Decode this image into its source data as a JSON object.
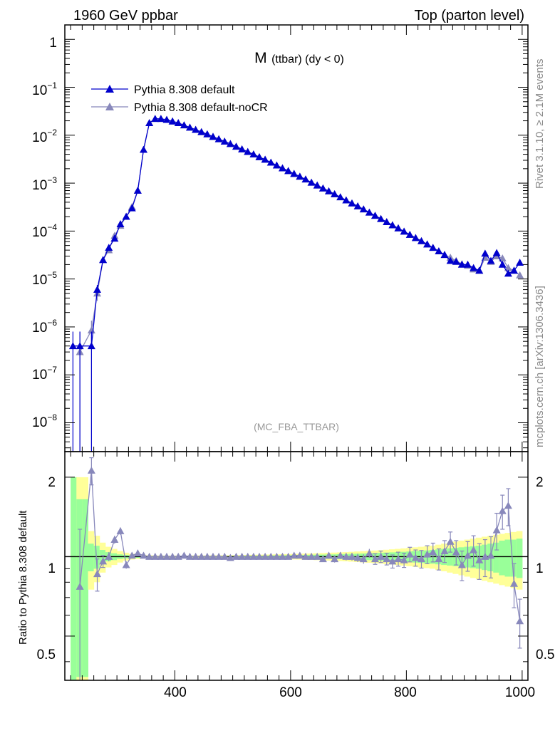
{
  "header": {
    "left": "1960 GeV ppbar",
    "right": "Top (parton level)"
  },
  "side_text": {
    "top": "Rivet 3.1.10, ≥ 2.1M events",
    "bottom": "mcplots.cern.ch [arXiv:1306.3436]"
  },
  "colors": {
    "default": "#0000cc",
    "noCR": "#8888bb",
    "band_inner": "#99ff99",
    "band_outer": "#ffff99"
  },
  "chart_data": [
    {
      "type": "line",
      "title_main": "M",
      "title_sub": "(ttbar) (dy < 0)",
      "watermark": "(MC_FBA_TTBAR)",
      "xlim": [
        210,
        1010
      ],
      "ylim": [
        2.5e-09,
        2.0
      ],
      "yscale": "log",
      "ytick_labels": [
        {
          "base": "1",
          "exp": ""
        },
        {
          "base": "10",
          "exp": "−1"
        },
        {
          "base": "10",
          "exp": "−2"
        },
        {
          "base": "10",
          "exp": "−3"
        },
        {
          "base": "10",
          "exp": "−4"
        },
        {
          "base": "10",
          "exp": "−5"
        },
        {
          "base": "10",
          "exp": "−6"
        },
        {
          "base": "10",
          "exp": "−7"
        },
        {
          "base": "10",
          "exp": "−8"
        }
      ],
      "legend": {
        "placement": "top-left"
      },
      "series": [
        {
          "name": "Pythia 8.308 default",
          "marker": "filled-triangle",
          "x": [
            224,
            236,
            256,
            266,
            276,
            286,
            296,
            306,
            316,
            326,
            336,
            346,
            356,
            366,
            376,
            386,
            396,
            406,
            416,
            426,
            436,
            446,
            456,
            466,
            476,
            486,
            496,
            506,
            516,
            526,
            536,
            546,
            556,
            566,
            576,
            586,
            596,
            606,
            616,
            626,
            636,
            646,
            656,
            666,
            676,
            686,
            696,
            706,
            716,
            726,
            736,
            746,
            756,
            766,
            776,
            786,
            796,
            806,
            816,
            826,
            836,
            846,
            856,
            866,
            876,
            886,
            896,
            906,
            916,
            926,
            936,
            946,
            956,
            966,
            976,
            986,
            996
          ],
          "y": [
            4e-07,
            4e-07,
            4e-07,
            6e-06,
            2.5e-05,
            4.5e-05,
            7e-05,
            0.00014,
            0.0002,
            0.0003,
            0.0007,
            0.005,
            0.018,
            0.022,
            0.022,
            0.021,
            0.0195,
            0.018,
            0.0162,
            0.0145,
            0.013,
            0.0117,
            0.0105,
            0.0093,
            0.0083,
            0.0074,
            0.0066,
            0.0058,
            0.0051,
            0.0045,
            0.004,
            0.0035,
            0.0031,
            0.0027,
            0.00235,
            0.00205,
            0.0018,
            0.00157,
            0.00137,
            0.0012,
            0.00103,
            0.0009,
            0.00078,
            0.00068,
            0.00059,
            0.00051,
            0.00044,
            0.00038,
            0.00033,
            0.000285,
            0.000245,
            0.00021,
            0.00018,
            0.000155,
            0.000133,
            0.000115,
            9.8e-05,
            8.4e-05,
            7.2e-05,
            6.2e-05,
            5.3e-05,
            4.5e-05,
            3.8e-05,
            3.2e-05,
            2.4e-05,
            2.3e-05,
            2e-05,
            2e-05,
            1.7e-05,
            1.5e-05,
            3.4e-05,
            2.4e-05,
            3.5e-05,
            2e-05,
            1.3e-05,
            1.5e-05,
            2.2e-05
          ],
          "yerr": [
            4e-07,
            4e-07,
            4e-07,
            1.5e-06,
            0,
            0,
            0,
            0,
            0,
            0,
            0,
            0,
            0,
            0,
            0,
            0,
            0,
            0,
            0,
            0,
            0,
            0,
            0,
            0,
            0,
            0,
            0,
            0,
            0,
            0,
            0,
            0,
            0,
            0,
            0,
            0,
            0,
            0,
            0,
            0,
            0,
            0,
            0,
            0,
            0,
            0,
            0,
            0,
            0,
            0,
            0,
            0,
            0,
            0,
            0,
            0,
            0,
            0,
            0,
            0,
            0,
            0,
            0,
            0,
            0,
            0,
            0,
            0,
            0,
            0,
            0,
            0,
            0,
            0,
            0,
            0,
            0
          ]
        },
        {
          "name": "Pythia 8.308 default-noCR",
          "marker": "filled-triangle",
          "x": [
            236,
            256,
            266,
            276,
            286,
            296,
            306,
            316,
            326,
            336,
            346,
            356,
            366,
            376,
            386,
            396,
            406,
            416,
            426,
            436,
            446,
            456,
            466,
            476,
            486,
            496,
            506,
            516,
            526,
            536,
            546,
            556,
            566,
            576,
            586,
            596,
            606,
            616,
            626,
            636,
            646,
            656,
            666,
            676,
            686,
            696,
            706,
            716,
            726,
            736,
            746,
            756,
            766,
            776,
            786,
            796,
            806,
            816,
            826,
            836,
            846,
            856,
            866,
            876,
            886,
            896,
            906,
            916,
            926,
            936,
            946,
            956,
            966,
            976,
            986,
            996
          ],
          "y": [
            3e-07,
            8.5e-07,
            5e-06,
            2.5e-05,
            4e-05,
            8e-05,
            0.00013,
            0.0002,
            0.00032,
            0.0007,
            0.005,
            0.018,
            0.022,
            0.022,
            0.021,
            0.0195,
            0.018,
            0.0162,
            0.0145,
            0.013,
            0.0117,
            0.0105,
            0.0093,
            0.0083,
            0.0074,
            0.0066,
            0.0058,
            0.0051,
            0.0045,
            0.004,
            0.0035,
            0.0031,
            0.0027,
            0.00235,
            0.00205,
            0.0018,
            0.00157,
            0.00137,
            0.0012,
            0.00103,
            0.0009,
            0.00078,
            0.00068,
            0.00059,
            0.00051,
            0.00044,
            0.00038,
            0.00033,
            0.000285,
            0.000245,
            0.00021,
            0.00018,
            0.000155,
            0.000133,
            0.000115,
            9.8e-05,
            8.4e-05,
            7.2e-05,
            6.2e-05,
            5.3e-05,
            4.5e-05,
            3.8e-05,
            3.2e-05,
            2.8e-05,
            2.4e-05,
            2.05e-05,
            1.9e-05,
            1.6e-05,
            1.5e-05,
            2.8e-05,
            2.3e-05,
            3e-05,
            2.7e-05,
            1.7e-05,
            1.5e-05,
            1.2e-05
          ],
          "yerr": [
            5e-07,
            5e-07,
            1.5e-06,
            0,
            0,
            0,
            0,
            0,
            0,
            0,
            0,
            0,
            0,
            0,
            0,
            0,
            0,
            0,
            0,
            0,
            0,
            0,
            0,
            0,
            0,
            0,
            0,
            0,
            0,
            0,
            0,
            0,
            0,
            0,
            0,
            0,
            0,
            0,
            0,
            0,
            0,
            0,
            0,
            0,
            0,
            0,
            0,
            0,
            0,
            0,
            0,
            0,
            0,
            0,
            0,
            0,
            0,
            0,
            0,
            0,
            0,
            0,
            0,
            0,
            0,
            0,
            0,
            0,
            0,
            0,
            0,
            0,
            0,
            0,
            0,
            0
          ]
        }
      ]
    },
    {
      "type": "line",
      "ylabel": "Ratio to Pythia 8.308 default",
      "xlim": [
        210,
        1010
      ],
      "ylim": [
        0.34,
        2.5
      ],
      "yscale": "log",
      "xticks": [
        400,
        600,
        800,
        1000
      ],
      "xtick_labels": [
        "400",
        "600",
        "800",
        "1000"
      ],
      "yticks": [
        0.5,
        1,
        2
      ],
      "ytick_labels": [
        "0.5",
        "1",
        "2"
      ],
      "band": {
        "x_edges": [
          220,
          230,
          240,
          250,
          260,
          270,
          280,
          290,
          300,
          310,
          320,
          330,
          340,
          350,
          360,
          370,
          380,
          390,
          400,
          410,
          420,
          430,
          440,
          450,
          460,
          470,
          480,
          490,
          500,
          510,
          520,
          530,
          540,
          550,
          560,
          570,
          580,
          590,
          600,
          610,
          620,
          630,
          640,
          650,
          660,
          670,
          680,
          690,
          700,
          710,
          720,
          730,
          740,
          750,
          760,
          770,
          780,
          790,
          800,
          810,
          820,
          830,
          840,
          850,
          860,
          870,
          880,
          890,
          900,
          910,
          920,
          930,
          940,
          950,
          960,
          970,
          980,
          990,
          1000
        ],
        "inner_half": [
          1,
          0.65,
          0.65,
          0.12,
          0.1,
          0.06,
          0.04,
          0.03,
          0.02,
          0.015,
          0.012,
          0.01,
          0.008,
          0.006,
          0.005,
          0.004,
          0.004,
          0.004,
          0.004,
          0.004,
          0.004,
          0.004,
          0.004,
          0.005,
          0.005,
          0.005,
          0.006,
          0.006,
          0.007,
          0.007,
          0.008,
          0.008,
          0.009,
          0.009,
          0.01,
          0.011,
          0.011,
          0.012,
          0.013,
          0.014,
          0.015,
          0.016,
          0.017,
          0.018,
          0.019,
          0.02,
          0.022,
          0.023,
          0.025,
          0.026,
          0.028,
          0.03,
          0.032,
          0.034,
          0.036,
          0.038,
          0.04,
          0.043,
          0.046,
          0.05,
          0.053,
          0.056,
          0.06,
          0.065,
          0.07,
          0.075,
          0.08,
          0.085,
          0.09,
          0.095,
          0.1,
          0.11,
          0.12,
          0.13,
          0.15,
          0.16,
          0.16,
          0.17
        ],
        "outer_half": [
          1,
          1,
          1,
          0.25,
          0.2,
          0.13,
          0.09,
          0.07,
          0.05,
          0.035,
          0.025,
          0.02,
          0.016,
          0.012,
          0.01,
          0.009,
          0.009,
          0.009,
          0.009,
          0.009,
          0.009,
          0.01,
          0.01,
          0.01,
          0.011,
          0.011,
          0.012,
          0.012,
          0.013,
          0.014,
          0.015,
          0.016,
          0.017,
          0.018,
          0.019,
          0.02,
          0.021,
          0.022,
          0.024,
          0.025,
          0.027,
          0.028,
          0.03,
          0.032,
          0.034,
          0.036,
          0.038,
          0.04,
          0.043,
          0.046,
          0.049,
          0.052,
          0.055,
          0.058,
          0.062,
          0.066,
          0.07,
          0.075,
          0.08,
          0.085,
          0.09,
          0.095,
          0.1,
          0.11,
          0.12,
          0.13,
          0.14,
          0.15,
          0.16,
          0.17,
          0.18,
          0.19,
          0.2,
          0.21,
          0.22,
          0.23,
          0.24,
          0.25
        ]
      },
      "series": [
        {
          "name": "Pythia 8.308 default",
          "x": [
            210,
            1010
          ],
          "y": [
            1,
            1
          ]
        },
        {
          "name": "Pythia 8.308 default-noCR",
          "x": [
            236,
            256,
            266,
            276,
            286,
            296,
            306,
            316,
            326,
            336,
            346,
            356,
            366,
            376,
            386,
            396,
            406,
            416,
            426,
            436,
            446,
            456,
            466,
            476,
            486,
            496,
            506,
            516,
            526,
            536,
            546,
            556,
            566,
            576,
            586,
            596,
            606,
            616,
            626,
            636,
            646,
            656,
            666,
            676,
            686,
            696,
            706,
            716,
            726,
            736,
            746,
            756,
            766,
            776,
            786,
            796,
            806,
            816,
            826,
            836,
            846,
            856,
            866,
            876,
            886,
            896,
            906,
            916,
            926,
            936,
            946,
            956,
            966,
            976,
            986,
            996
          ],
          "y": [
            0.77,
            2.12,
            0.86,
            0.96,
            1.0,
            1.16,
            1.25,
            0.93,
            1.01,
            1.03,
            1.01,
            1.0,
            1.0,
            1.0,
            1.0,
            1.0,
            1.0,
            1.01,
            1.0,
            1.0,
            1.0,
            1.0,
            1.0,
            1.0,
            1.0,
            0.99,
            1.0,
            1.0,
            1.0,
            1.0,
            1.0,
            1.0,
            1.0,
            1.0,
            1.0,
            1.0,
            1.01,
            1.01,
            1.0,
            1.0,
            1.0,
            0.98,
            1.01,
            0.98,
            1.01,
            1.0,
            1.0,
            0.99,
            0.98,
            1.03,
            0.98,
            1.0,
            0.98,
            0.96,
            0.98,
            0.97,
            1.02,
            0.99,
            0.98,
            1.02,
            1.04,
            0.98,
            1.05,
            1.14,
            1.04,
            0.93,
            1.01,
            1.06,
            0.97,
            1.0,
            1.01,
            1.26,
            1.49,
            1.56,
            0.79,
            0.57
          ],
          "yerr": [
            0.5,
            0.25,
            0.12,
            0.05,
            0.04,
            0.04,
            0.04,
            0.03,
            0.02,
            0.015,
            0.01,
            0.008,
            0.008,
            0.008,
            0.008,
            0.008,
            0.008,
            0.008,
            0.008,
            0.008,
            0.008,
            0.008,
            0.008,
            0.008,
            0.01,
            0.01,
            0.01,
            0.01,
            0.012,
            0.012,
            0.012,
            0.014,
            0.014,
            0.016,
            0.016,
            0.018,
            0.018,
            0.02,
            0.02,
            0.022,
            0.024,
            0.025,
            0.028,
            0.03,
            0.03,
            0.032,
            0.034,
            0.036,
            0.04,
            0.04,
            0.045,
            0.05,
            0.05,
            0.055,
            0.06,
            0.06,
            0.065,
            0.07,
            0.075,
            0.08,
            0.085,
            0.09,
            0.1,
            0.1,
            0.11,
            0.12,
            0.13,
            0.14,
            0.15,
            0.16,
            0.18,
            0.2,
            0.22,
            0.25,
            0.15,
            0.12
          ]
        }
      ]
    }
  ]
}
